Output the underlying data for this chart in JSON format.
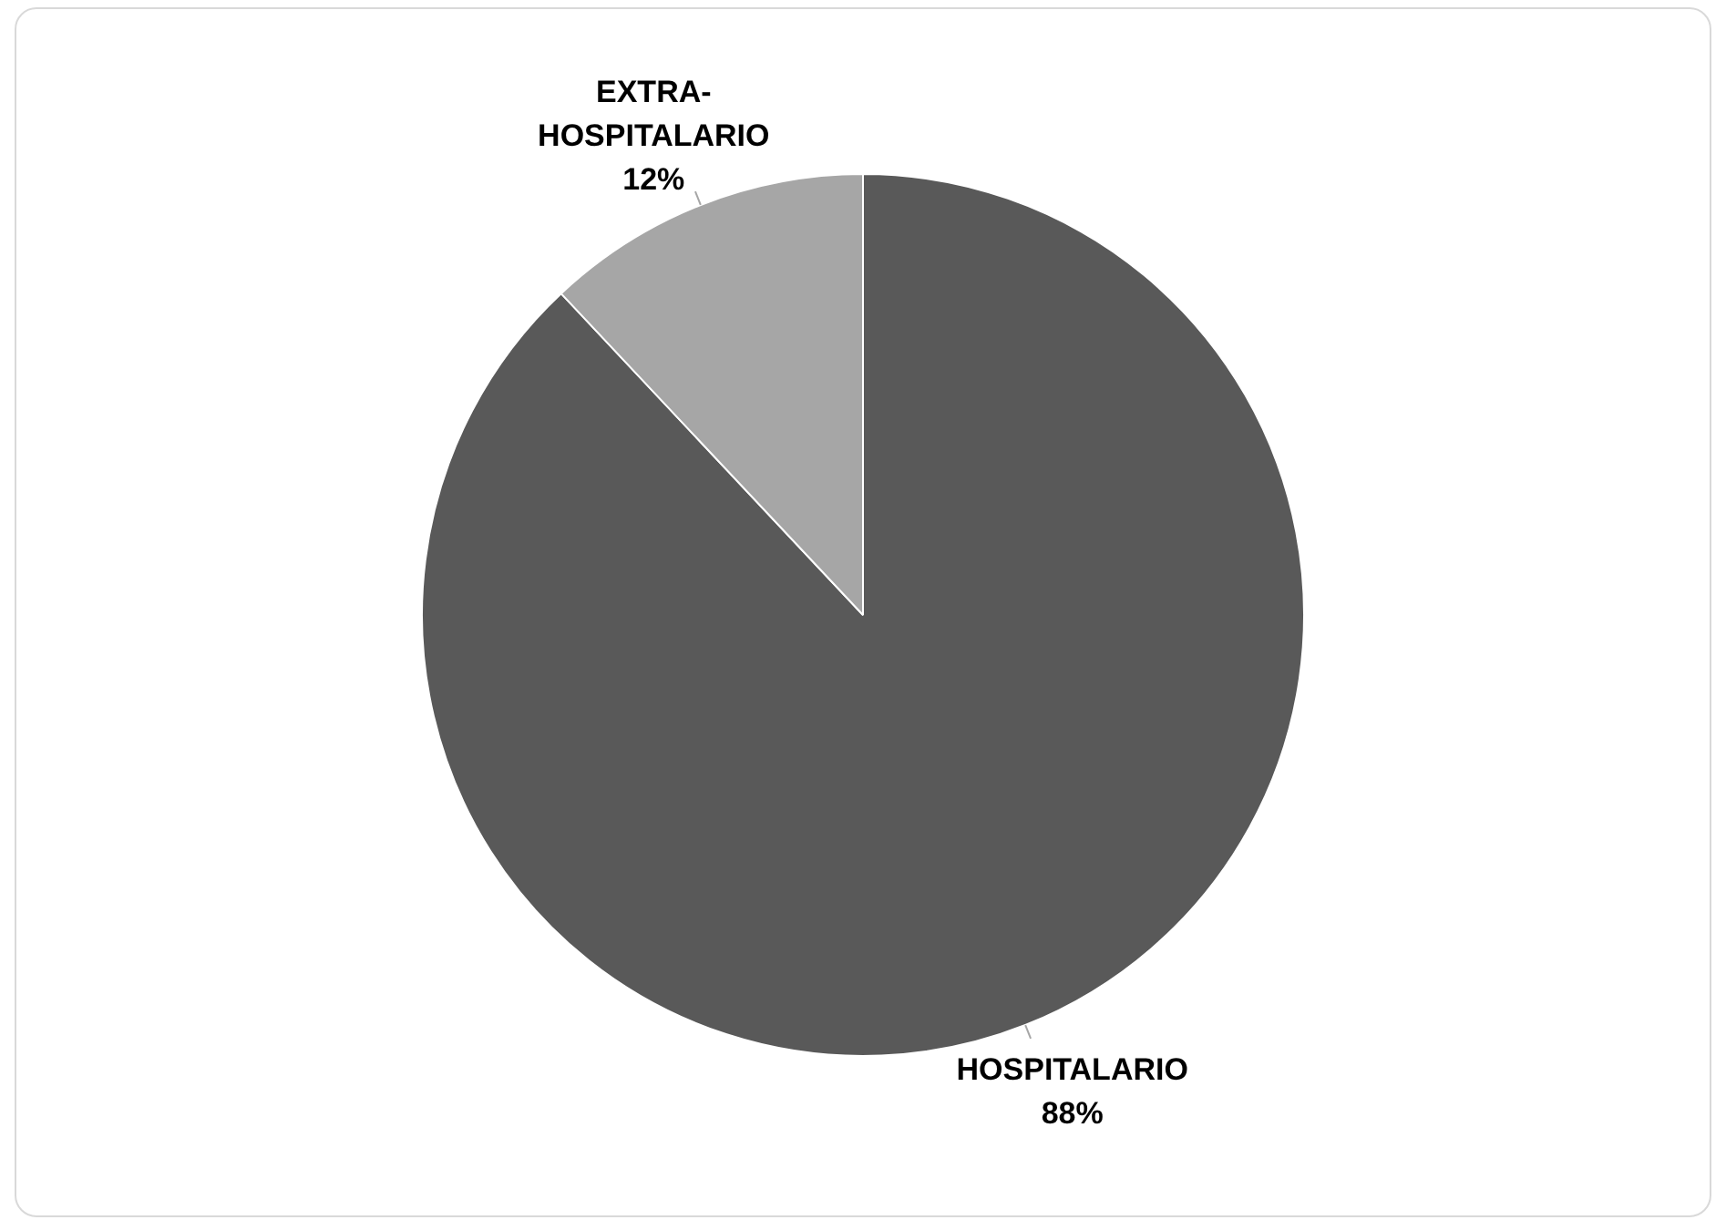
{
  "chart_data": {
    "type": "pie",
    "categories": [
      "HOSPITALARIO",
      "EXTRA-HOSPITALARIO"
    ],
    "values": [
      88,
      12
    ],
    "colors": [
      "#595959",
      "#a6a6a6"
    ],
    "value_labels": [
      "88%",
      "12%"
    ],
    "legend": false
  }
}
